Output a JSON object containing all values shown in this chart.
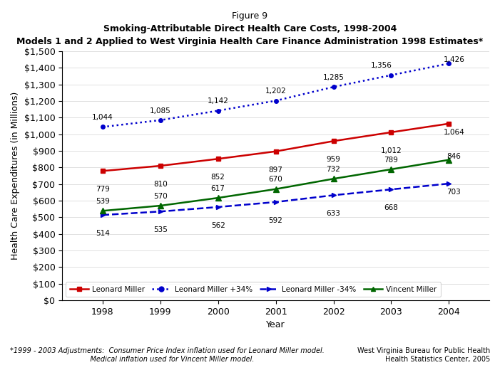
{
  "title_line1": "Figure 9",
  "title_line2": "Smoking-Attributable Direct Health Care Costs, 1998-2004",
  "title_line3": "Models 1 and 2 Applied to West Virginia Health Care Finance Administration 1998 Estimates*",
  "xlabel": "Year",
  "ylabel": "Health Care Expenditures (in Millions)",
  "years": [
    1998,
    1999,
    2000,
    2001,
    2002,
    2003,
    2004
  ],
  "leonard_miller": [
    779,
    810,
    852,
    897,
    959,
    1012,
    1064
  ],
  "leonard_miller_plus34": [
    1044,
    1085,
    1142,
    1202,
    1285,
    1356,
    1426
  ],
  "leonard_miller_minus34": [
    514,
    535,
    562,
    592,
    633,
    668,
    703
  ],
  "vincent_miller": [
    539,
    570,
    617,
    670,
    732,
    789,
    846
  ],
  "ylim": [
    0,
    1500
  ],
  "yticks": [
    0,
    100,
    200,
    300,
    400,
    500,
    600,
    700,
    800,
    900,
    1000,
    1100,
    1200,
    1300,
    1400,
    1500
  ],
  "color_leonard": "#cc0000",
  "color_leonard_plus34": "#0000cc",
  "color_leonard_minus34": "#0000cc",
  "color_vincent": "#006600",
  "footnote": "*1999 - 2003 Adjustments:  Consumer Price Index inflation used for Leonard Miller model.\n                                Medical inflation used for Vincent Miller model.",
  "source": "West Virginia Bureau for Public Health\nHealth Statistics Center, 2005",
  "legend_labels": [
    "Leonard Miller",
    "Leonard Miller +34%",
    "Leonard Miller -34%",
    "Vincent Miller"
  ]
}
